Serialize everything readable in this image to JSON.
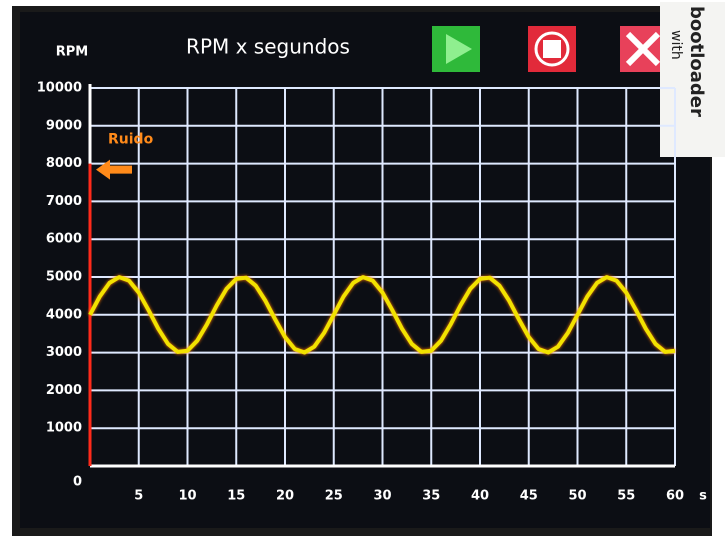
{
  "chart_data": {
    "type": "line",
    "title": "RPM x segundos",
    "y_label": "RPM",
    "x_label": "s",
    "x": [
      0,
      1,
      2,
      3,
      4,
      5,
      6,
      7,
      8,
      9,
      10,
      11,
      12,
      13,
      14,
      15,
      16,
      17,
      18,
      19,
      20,
      21,
      22,
      23,
      24,
      25,
      26,
      27,
      28,
      29,
      30,
      31,
      32,
      33,
      34,
      35,
      36,
      37,
      38,
      39,
      40,
      41,
      42,
      43,
      44,
      45,
      46,
      47,
      48,
      49,
      50,
      51,
      52,
      53,
      54,
      55,
      56,
      57,
      58,
      59,
      60
    ],
    "series": [
      {
        "color": "#f2e200",
        "values": [
          4000,
          4482,
          4844,
          4998,
          4905,
          4588,
          4125,
          3632,
          3229,
          3018,
          3049,
          3315,
          3751,
          4249,
          4685,
          4951,
          4982,
          4771,
          4368,
          3875,
          3412,
          3095,
          3002,
          3156,
          3518,
          4000,
          4482,
          4844,
          4998,
          4905,
          4588,
          4125,
          3632,
          3229,
          3018,
          3049,
          3315,
          3751,
          4249,
          4685,
          4951,
          4982,
          4771,
          4368,
          3875,
          3412,
          3095,
          3002,
          3156,
          3518,
          4000,
          4482,
          4844,
          4998,
          4905,
          4588,
          4125,
          3632,
          3229,
          3018,
          3049
        ]
      }
    ],
    "annotation": {
      "text": "Ruido",
      "x": 0,
      "y": 8000,
      "color": "#ff2a1a"
    },
    "xlim": [
      0,
      60
    ],
    "xticks": [
      5,
      10,
      15,
      20,
      25,
      30,
      35,
      40,
      45,
      50,
      55,
      60
    ],
    "ylim": [
      0,
      10000
    ],
    "yticks": [
      0,
      1000,
      2000,
      3000,
      4000,
      5000,
      6000,
      7000,
      8000,
      9000,
      10000
    ],
    "grid": true
  },
  "sticker": [
    "with",
    "bootloader"
  ]
}
